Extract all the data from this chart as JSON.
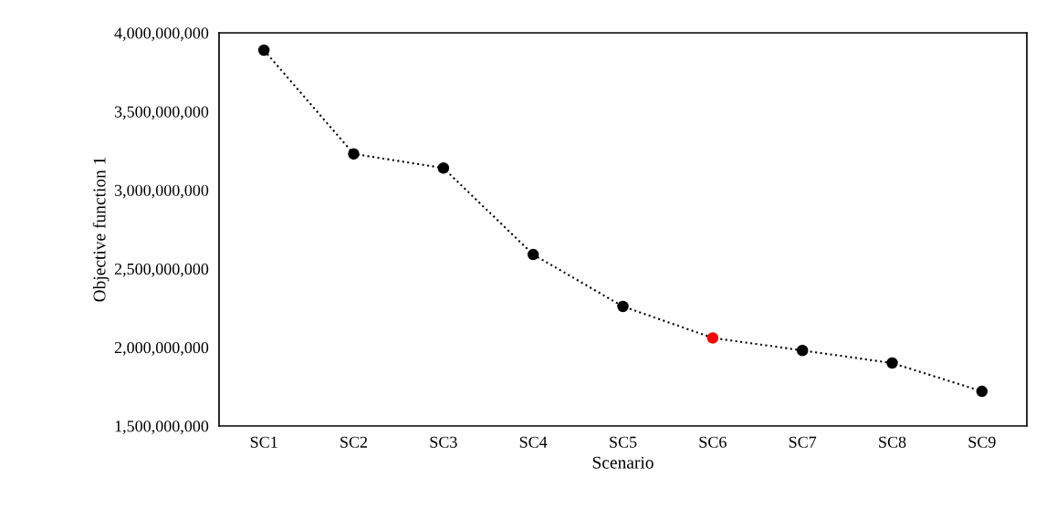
{
  "chart_data": {
    "type": "line",
    "xlabel": "Scenario",
    "ylabel": "Objective function 1",
    "categories": [
      "SC1",
      "SC2",
      "SC3",
      "SC4",
      "SC5",
      "SC6",
      "SC7",
      "SC8",
      "SC9"
    ],
    "series": [
      {
        "color": "#000000",
        "values": [
          3890000000,
          3230000000,
          3140000000,
          2590000000,
          2260000000,
          2060000000,
          1980000000,
          1900000000,
          1720000000
        ],
        "colors": [
          "#000000",
          "#000000",
          "#000000",
          "#000000",
          "#000000",
          "#ff0000",
          "#000000",
          "#000000",
          "#000000"
        ]
      }
    ],
    "ylim": [
      1500000000,
      4000000000
    ],
    "yticks": [
      {
        "value": 1500000000,
        "label": "1,500,000,000"
      },
      {
        "value": 2000000000,
        "label": "2,000,000,000"
      },
      {
        "value": 2500000000,
        "label": "2,500,000,000"
      },
      {
        "value": 3000000000,
        "label": "3,000,000,000"
      },
      {
        "value": 3500000000,
        "label": "3,500,000,000"
      },
      {
        "value": 4000000000,
        "label": "4,000,000,000"
      }
    ],
    "grid": false,
    "legend": false,
    "marker": "circle",
    "line_style": "dotted"
  }
}
